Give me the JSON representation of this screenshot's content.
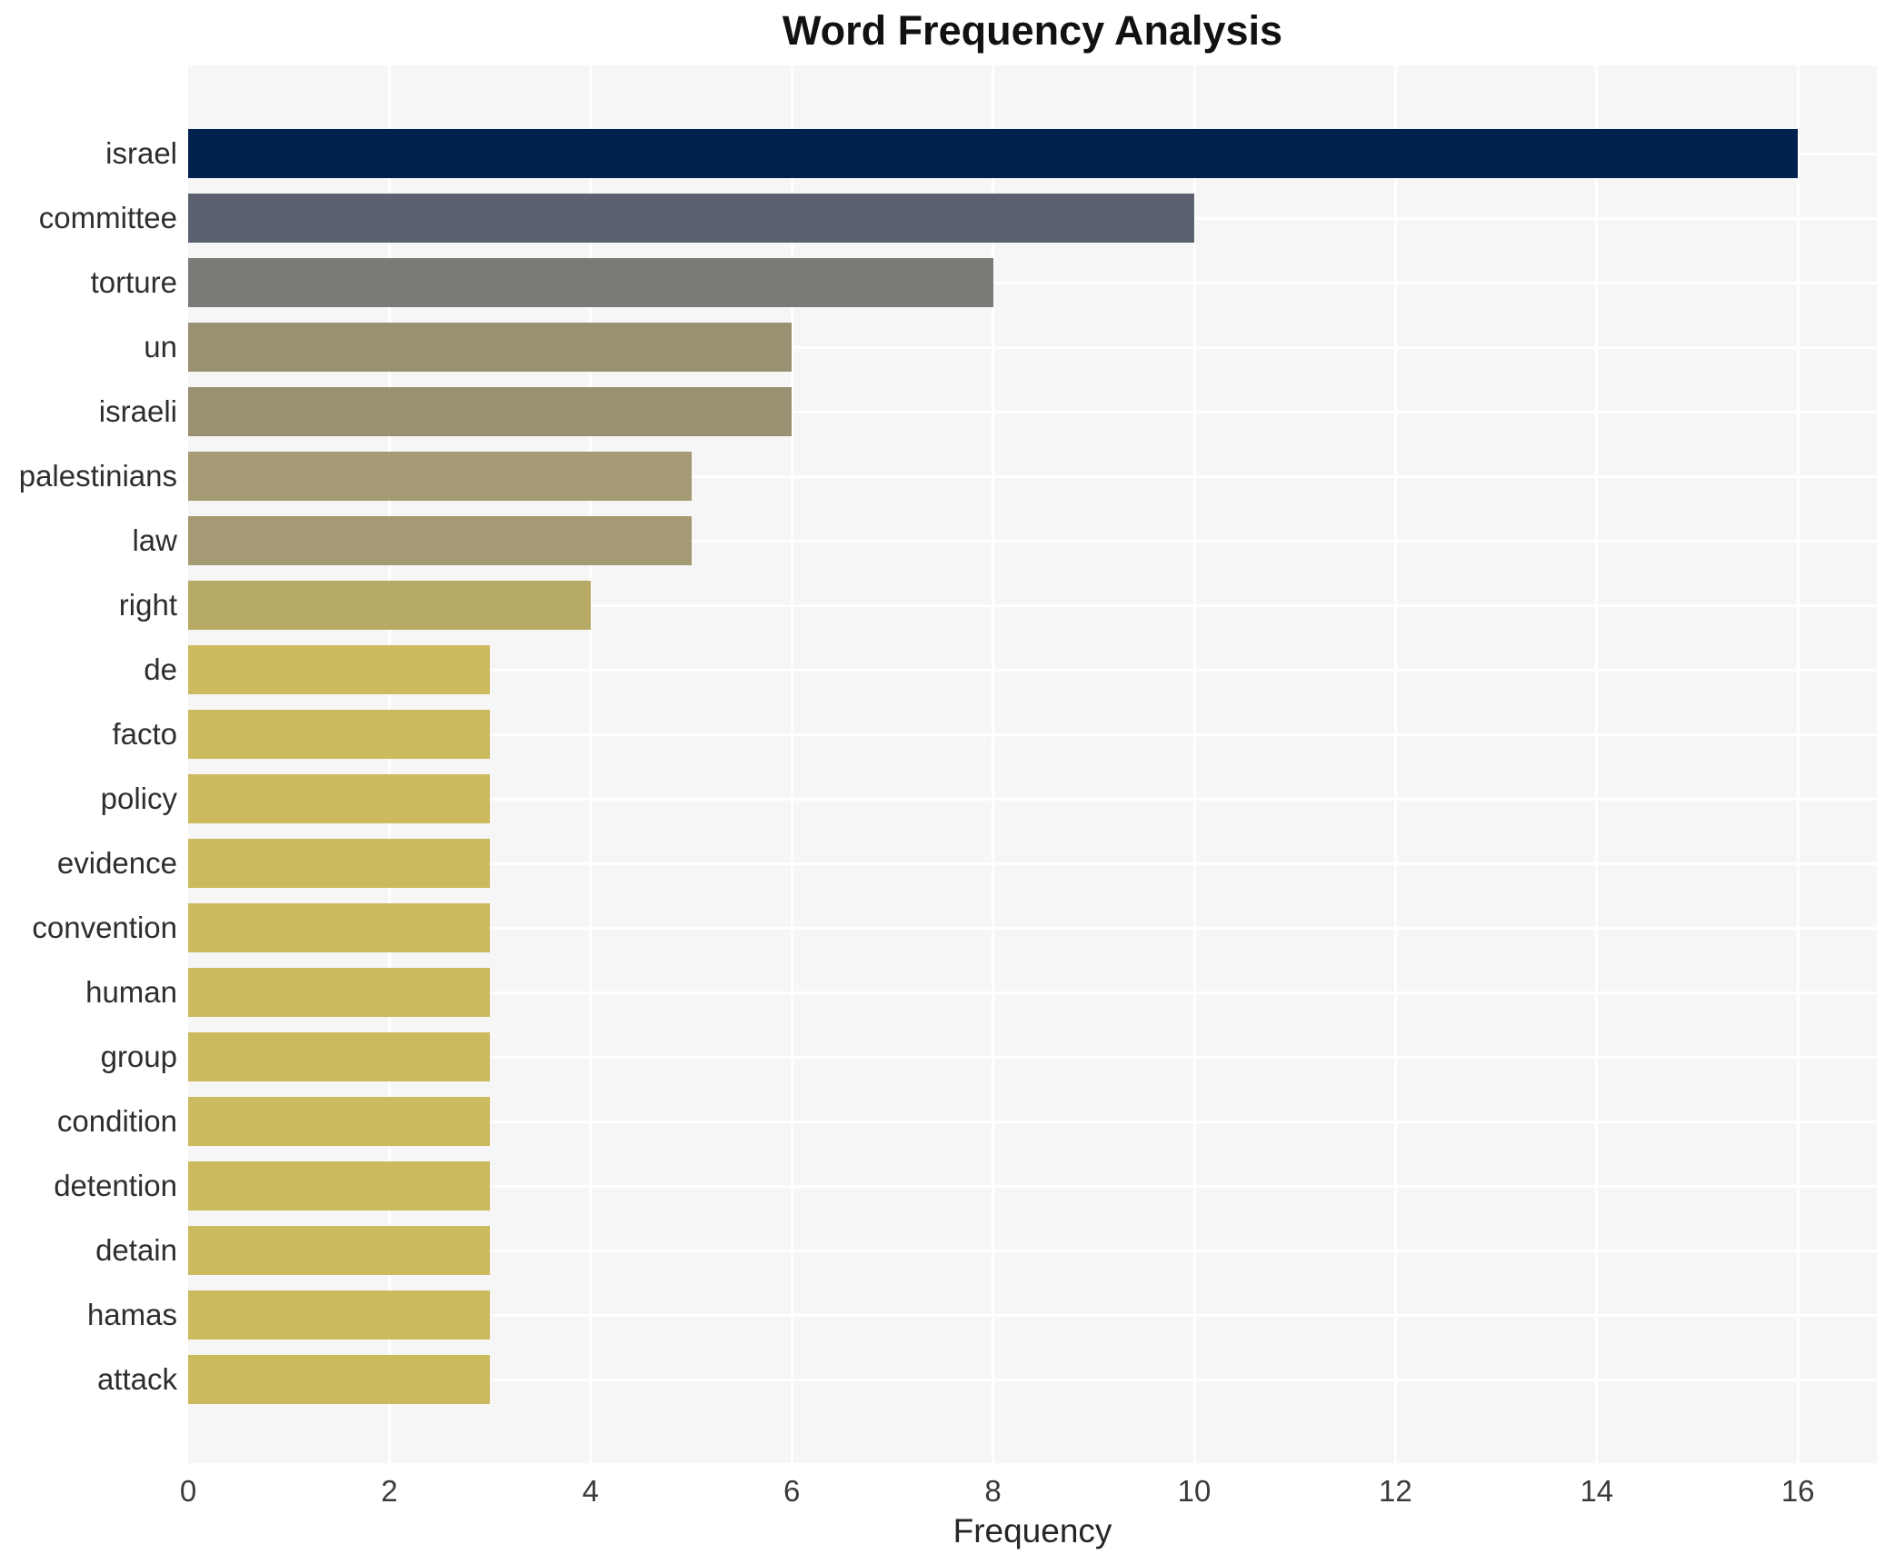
{
  "chart_data": {
    "type": "bar",
    "orientation": "horizontal",
    "title": "Word Frequency Analysis",
    "xlabel": "Frequency",
    "ylabel": "",
    "xlim": [
      0,
      16.8
    ],
    "xticks": [
      0,
      2,
      4,
      6,
      8,
      10,
      12,
      14,
      16
    ],
    "grid": true,
    "legend": false,
    "categories": [
      "israel",
      "committee",
      "torture",
      "un",
      "israeli",
      "palestinians",
      "law",
      "right",
      "de",
      "facto",
      "policy",
      "evidence",
      "convention",
      "human",
      "group",
      "condition",
      "detention",
      "detain",
      "hamas",
      "attack"
    ],
    "values": [
      16,
      10,
      8,
      6,
      6,
      5,
      5,
      4,
      3,
      3,
      3,
      3,
      3,
      3,
      3,
      3,
      3,
      3,
      3,
      3
    ],
    "bar_colors": [
      "#01224e",
      "#5c6170",
      "#7b7a76",
      "#9a9172",
      "#9a9172",
      "#a49a73",
      "#a49a73",
      "#b7aa67",
      "#ccba5f",
      "#ccba5f",
      "#ccba5f",
      "#ccba5f",
      "#ccba5f",
      "#ccba5f",
      "#ccba5f",
      "#ccba5f",
      "#ccba5f",
      "#ccba5f",
      "#ccba5f",
      "#ccba5f"
    ]
  },
  "colors": {
    "figure_background": "#ffffff",
    "plot_background": "#f6f6f7",
    "gridline": "#ffffff",
    "title_text": "#111111",
    "label_text": "#2e2e2e",
    "tick_text": "#3a3a3a"
  }
}
